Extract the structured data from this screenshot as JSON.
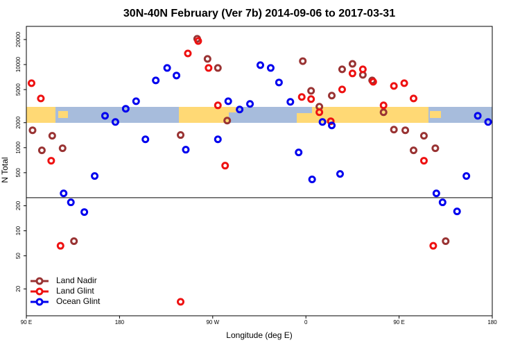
{
  "chart_data": {
    "type": "scatter",
    "title": "30N-40N February (Ver 7b)   2014-09-06 to 2017-03-31",
    "xlabel": "Longitude (deg E)",
    "ylabel": "N Total",
    "xlim": [
      90,
      540
    ],
    "xticks": [
      {
        "value": 90,
        "label": "90 E"
      },
      {
        "value": 180,
        "label": "180"
      },
      {
        "value": 270,
        "label": "90 W"
      },
      {
        "value": 360,
        "label": "0"
      },
      {
        "value": 450,
        "label": "90 E"
      },
      {
        "value": 540,
        "label": "180"
      }
    ],
    "ylim": [
      9.5,
      28800
    ],
    "log_y": true,
    "yticks": [
      20,
      50,
      100,
      200,
      500,
      1000,
      2000,
      5000,
      10000,
      20000
    ],
    "reference_line": 250,
    "legend": "bottom-left",
    "series": [
      {
        "name": "Land Nadir",
        "color": "#993333",
        "x": [
          96,
          105,
          115,
          125,
          136,
          239,
          255,
          265,
          275,
          284,
          357,
          365,
          373,
          385,
          395,
          405,
          415,
          424,
          435,
          445,
          456,
          464,
          474,
          485,
          495
        ],
        "values": [
          1620,
          929,
          1390,
          985,
          75,
          1420,
          20400,
          11700,
          9100,
          2120,
          11000,
          4830,
          3110,
          4230,
          8770,
          10200,
          7520,
          6450,
          2670,
          1650,
          1620,
          929,
          1390,
          985,
          75
        ]
      },
      {
        "name": "Land Glint",
        "color": "#ee1111",
        "x": [
          95,
          104,
          114,
          123,
          239,
          246,
          256,
          266,
          275,
          282,
          356,
          365,
          373,
          384,
          395,
          405,
          415,
          425,
          435,
          445,
          455,
          464,
          474,
          483
        ],
        "values": [
          5970,
          3910,
          697,
          66,
          14,
          13600,
          19200,
          9100,
          3230,
          608,
          4070,
          3840,
          2670,
          2080,
          5020,
          7820,
          8770,
          6200,
          3230,
          5530,
          5970,
          3910,
          697,
          66
        ]
      },
      {
        "name": "Ocean Glint",
        "color": "#0000ee",
        "x": [
          126,
          133,
          146,
          156,
          166,
          176,
          186,
          196,
          205,
          215,
          226,
          235,
          244,
          275,
          285,
          296,
          306,
          316,
          326,
          334,
          345,
          353,
          366,
          376,
          385,
          393,
          486,
          492,
          506,
          515,
          526,
          536
        ],
        "values": [
          282,
          220,
          168,
          456,
          2420,
          2040,
          2940,
          3620,
          1260,
          6450,
          9100,
          7380,
          946,
          1260,
          3620,
          2880,
          3360,
          9840,
          9100,
          6090,
          3560,
          877,
          415,
          2040,
          1850,
          483,
          282,
          220,
          171,
          456,
          2420,
          2040
        ]
      }
    ]
  }
}
